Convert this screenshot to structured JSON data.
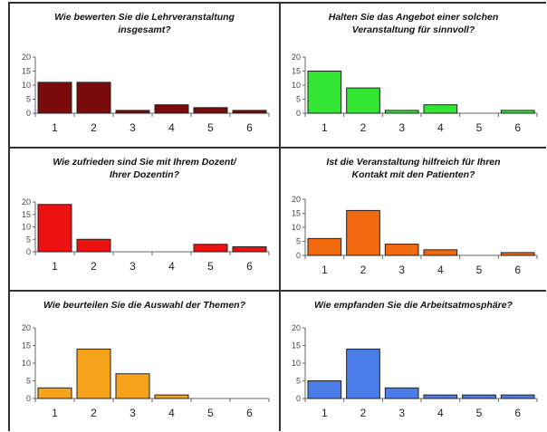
{
  "chart_data": [
    {
      "type": "bar",
      "title": "Wie bewerten Sie die Lehrveranstaltung\ninsgesamt?",
      "categories": [
        "1",
        "2",
        "3",
        "4",
        "5",
        "6"
      ],
      "values": [
        11,
        11,
        1,
        3,
        2,
        1
      ],
      "ylim": [
        0,
        20
      ],
      "yticks": [
        "0",
        "5",
        "10",
        "15",
        "20"
      ],
      "color": "#7b0a0a",
      "grid": false
    },
    {
      "type": "bar",
      "title": "Halten Sie das Angebot einer solchen\nVeranstaltung für sinnvoll?",
      "categories": [
        "1",
        "2",
        "3",
        "4",
        "5",
        "6"
      ],
      "values": [
        15,
        9,
        1,
        3,
        0,
        1
      ],
      "ylim": [
        0,
        20
      ],
      "yticks": [
        "0",
        "5",
        "10",
        "15",
        "20"
      ],
      "color": "#33e633",
      "grid": false
    },
    {
      "type": "bar",
      "title": "Wie zufrieden sind Sie mit Ihrem Dozent/\nIhrer Dozentin?",
      "categories": [
        "1",
        "2",
        "3",
        "4",
        "5",
        "6"
      ],
      "values": [
        19,
        5,
        0,
        0,
        3,
        2
      ],
      "ylim": [
        0,
        20
      ],
      "yticks": [
        "0",
        "5",
        "10",
        "15",
        "20"
      ],
      "color": "#ee1111",
      "grid": false
    },
    {
      "type": "bar",
      "title": "Ist die Veranstaltung hilfreich für Ihren\nKontakt mit den Patienten?",
      "categories": [
        "1",
        "2",
        "3",
        "4",
        "5",
        "6"
      ],
      "values": [
        6,
        16,
        4,
        2,
        0,
        1
      ],
      "ylim": [
        0,
        20
      ],
      "yticks": [
        "0",
        "5",
        "10",
        "15",
        "20"
      ],
      "color": "#f26a10",
      "grid": false
    },
    {
      "type": "bar",
      "title": "Wie beurteilen Sie die Auswahl der Themen?",
      "categories": [
        "1",
        "2",
        "3",
        "4",
        "5",
        "6"
      ],
      "values": [
        3,
        14,
        7,
        1,
        0,
        0
      ],
      "ylim": [
        0,
        20
      ],
      "yticks": [
        "0",
        "5",
        "10",
        "15",
        "20"
      ],
      "color": "#f5a31a",
      "grid": false
    },
    {
      "type": "bar",
      "title": "Wie empfanden Sie die Arbeitsatmosphäre?",
      "categories": [
        "1",
        "2",
        "3",
        "4",
        "5",
        "6"
      ],
      "values": [
        5,
        14,
        3,
        1,
        1,
        1
      ],
      "ylim": [
        0,
        20
      ],
      "yticks": [
        "0",
        "5",
        "10",
        "15",
        "20"
      ],
      "color": "#4a7de8",
      "grid": false
    }
  ]
}
